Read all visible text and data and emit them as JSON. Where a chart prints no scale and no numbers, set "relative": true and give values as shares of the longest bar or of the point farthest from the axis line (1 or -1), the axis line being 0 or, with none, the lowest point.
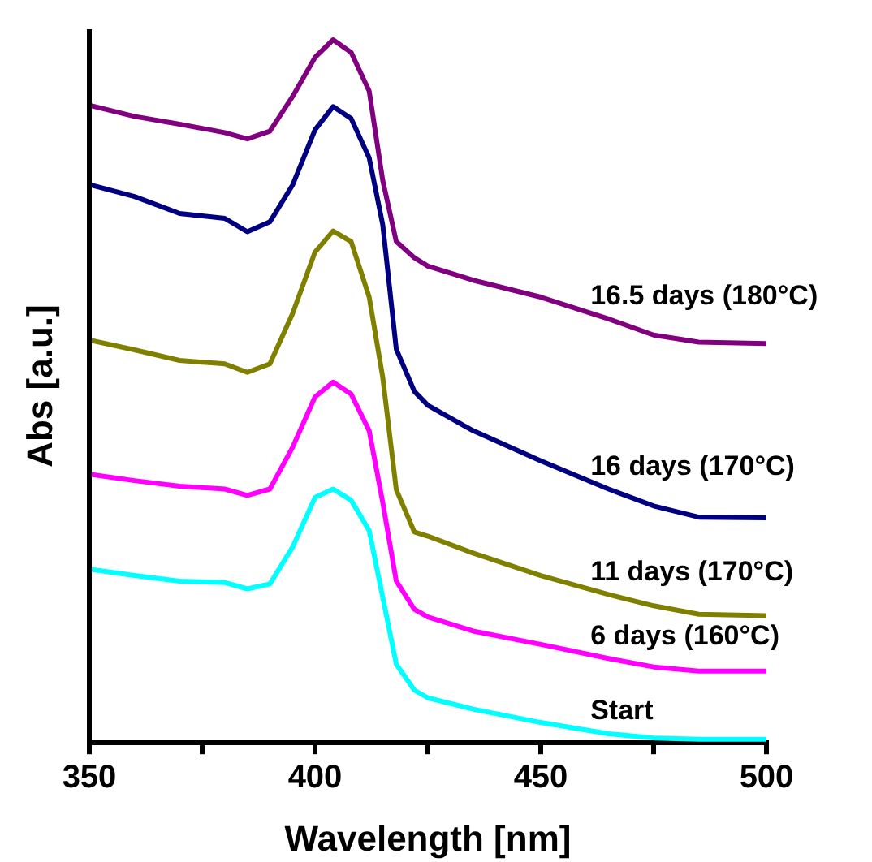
{
  "chart_data": {
    "type": "line",
    "relative": true,
    "xlabel": "Wavelength [nm]",
    "ylabel": "Abs [a.u.]",
    "xlim": [
      350,
      500
    ],
    "xticks": [
      350,
      {
        "value": 375,
        "label": null
      },
      400,
      {
        "value": 425,
        "label": null
      },
      450,
      {
        "value": 475,
        "label": null
      },
      500
    ],
    "grid": false,
    "legend": false,
    "marker": "none",
    "line_style": "solid",
    "x": [
      350,
      360,
      370,
      380,
      385,
      390,
      395,
      400,
      404,
      408,
      412,
      415,
      418,
      422,
      425,
      435,
      450,
      465,
      475,
      485,
      500
    ],
    "series": [
      {
        "name": "16.5 days (180°C)",
        "color": "#800080",
        "values": [
          0.907,
          0.891,
          0.88,
          0.868,
          0.859,
          0.87,
          0.919,
          0.975,
          1.0,
          0.982,
          0.927,
          0.8,
          0.713,
          0.69,
          0.678,
          0.658,
          0.634,
          0.603,
          0.58,
          0.57,
          0.568
        ]
      },
      {
        "name": "16 days (170°C)",
        "color": "#000080",
        "values": [
          0.794,
          0.777,
          0.753,
          0.746,
          0.727,
          0.741,
          0.793,
          0.872,
          0.905,
          0.888,
          0.832,
          0.737,
          0.56,
          0.5,
          0.48,
          0.444,
          0.401,
          0.361,
          0.337,
          0.321,
          0.32
        ]
      },
      {
        "name": "11 days (170°C)",
        "color": "#808000",
        "values": [
          0.573,
          0.559,
          0.544,
          0.539,
          0.527,
          0.539,
          0.61,
          0.698,
          0.728,
          0.713,
          0.634,
          0.52,
          0.36,
          0.3,
          0.294,
          0.27,
          0.238,
          0.211,
          0.195,
          0.183,
          0.181
        ]
      },
      {
        "name": "6 days (160°C)",
        "color": "#ff00ff",
        "values": [
          0.382,
          0.373,
          0.365,
          0.361,
          0.352,
          0.361,
          0.42,
          0.492,
          0.513,
          0.496,
          0.444,
          0.342,
          0.23,
          0.19,
          0.179,
          0.159,
          0.14,
          0.12,
          0.108,
          0.102,
          0.102
        ]
      },
      {
        "name": "Start",
        "color": "#00ffff",
        "values": [
          0.247,
          0.238,
          0.23,
          0.228,
          0.219,
          0.226,
          0.278,
          0.349,
          0.361,
          0.345,
          0.302,
          0.207,
          0.112,
          0.075,
          0.064,
          0.048,
          0.029,
          0.013,
          0.007,
          0.005,
          0.005
        ]
      }
    ]
  }
}
